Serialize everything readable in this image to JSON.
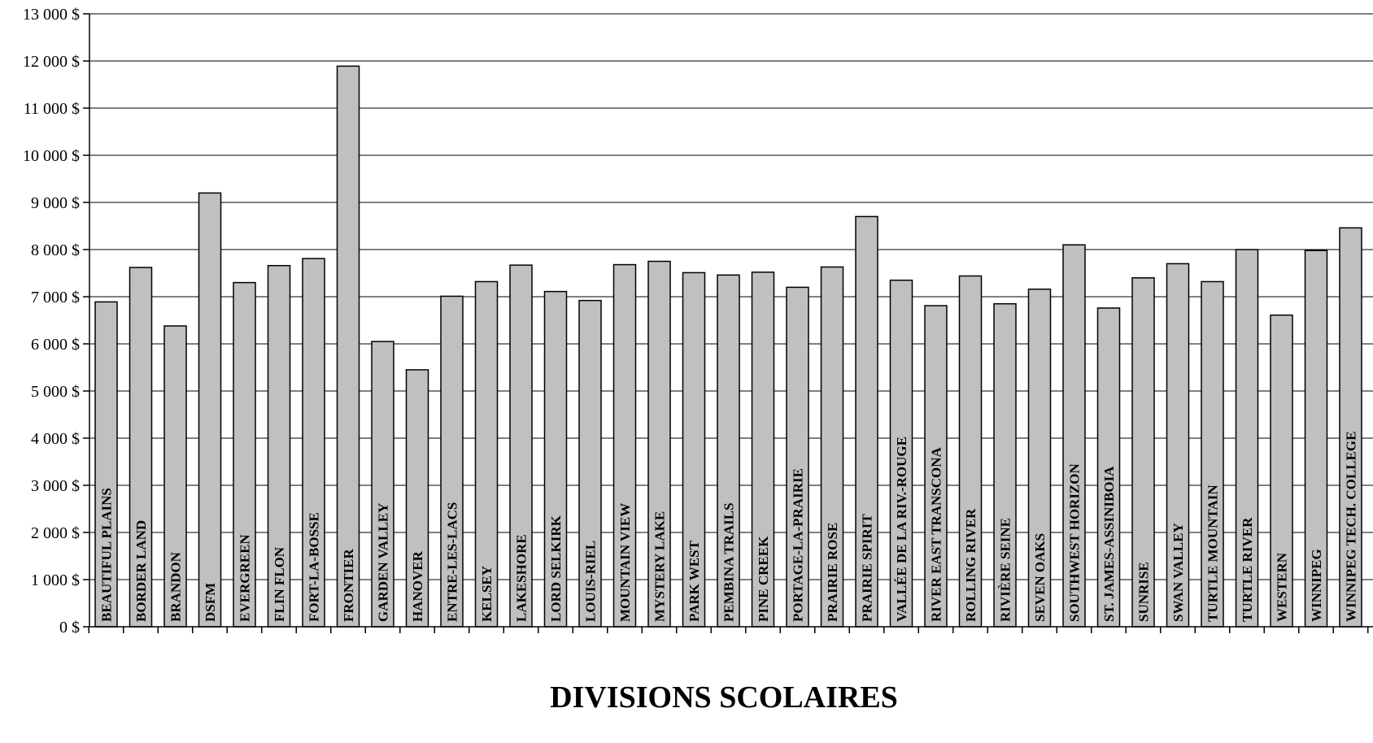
{
  "chart_data": {
    "type": "bar",
    "title": "",
    "xlabel": "DIVISIONS SCOLAIRES",
    "ylabel": "",
    "ylim": [
      0,
      13000
    ],
    "grid": true,
    "yticks": [
      "0 $",
      "1 000 $",
      "2 000 $",
      "3 000 $",
      "4 000 $",
      "5 000 $",
      "6 000 $",
      "7 000 $",
      "8 000 $",
      "9 000 $",
      "10 000 $",
      "11 000 $",
      "12 000 $",
      "13 000 $"
    ],
    "categories": [
      "BEAUTIFUL PLAINS",
      "BORDER LAND",
      "BRANDON",
      "DSFM",
      "EVERGREEN",
      "FLIN FLON",
      "FORT-LA-BOSSE",
      "FRONTIER",
      "GARDEN VALLEY",
      "HANOVER",
      "ENTRE-LES-LACS",
      "KELSEY",
      "LAKESHORE",
      "LORD SELKIRK",
      "LOUIS-RIEL",
      "MOUNTAIN VIEW",
      "MYSTERY LAKE",
      "PARK WEST",
      "PEMBINA TRAILS",
      "PINE CREEK",
      "PORTAGE-LA-PRAIRIE",
      "PRAIRIE ROSE",
      "PRAIRIE SPIRIT",
      "VALLÉE DE LA RIV.-ROUGE",
      "RIVER EAST TRANSCONA",
      "ROLLING RIVER",
      "RIVIÈRE SEINE",
      "SEVEN OAKS",
      "SOUTHWEST HORIZON",
      "ST. JAMES-ASSINIBOIA",
      "SUNRISE",
      "SWAN VALLEY",
      "TURTLE MOUNTAIN",
      "TURTLE RIVER",
      "WESTERN",
      "WINNIPEG",
      "WINNIPEG TECH. COLLEGE"
    ],
    "values": [
      6890,
      7620,
      6380,
      9200,
      7300,
      7660,
      7810,
      11890,
      6050,
      5450,
      7010,
      7320,
      7670,
      7110,
      6920,
      7680,
      7750,
      7510,
      7460,
      7520,
      7200,
      7630,
      8700,
      7350,
      6810,
      7440,
      6850,
      7160,
      8100,
      6760,
      7400,
      7700,
      7320,
      8000,
      6610,
      7980,
      8460
    ],
    "bar_color": "#c0c0c0",
    "bar_stroke": "#000000",
    "grid_color": "#000000"
  }
}
